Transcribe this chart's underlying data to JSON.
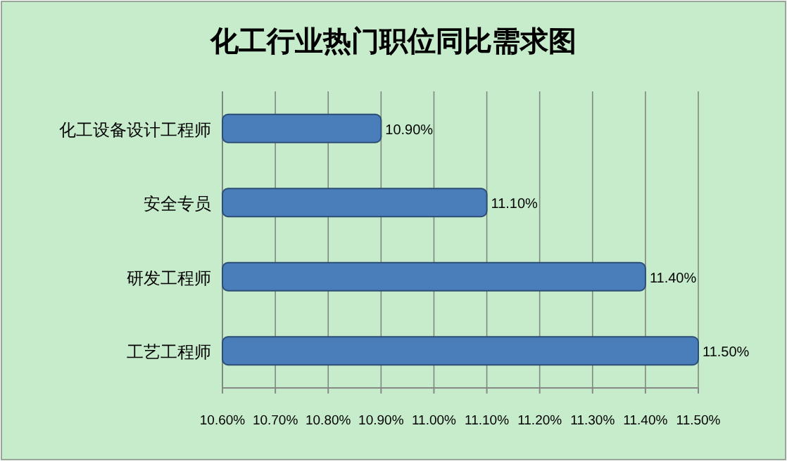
{
  "chart_data": {
    "type": "bar",
    "orientation": "horizontal",
    "title": "化工行业热门职位同比需求图",
    "categories": [
      "化工设备设计工程师",
      "安全专员",
      "研发工程师",
      "工艺工程师"
    ],
    "values": [
      10.9,
      11.1,
      11.4,
      11.5
    ],
    "value_labels": [
      "10.90%",
      "11.10%",
      "11.40%",
      "11.50%"
    ],
    "color": "#4a7ebb",
    "xlim": [
      10.6,
      11.5
    ],
    "xticks": [
      {
        "value": 10.6,
        "label": "10.60%"
      },
      {
        "value": 10.7,
        "label": "10.70%"
      },
      {
        "value": 10.8,
        "label": "10.80%"
      },
      {
        "value": 10.9,
        "label": "10.90%"
      },
      {
        "value": 11.0,
        "label": "11.00%"
      },
      {
        "value": 11.1,
        "label": "11.10%"
      },
      {
        "value": 11.2,
        "label": "11.20%"
      },
      {
        "value": 11.3,
        "label": "11.30%"
      },
      {
        "value": 11.4,
        "label": "11.40%"
      },
      {
        "value": 11.5,
        "label": "11.50%"
      }
    ],
    "grid": "x"
  }
}
